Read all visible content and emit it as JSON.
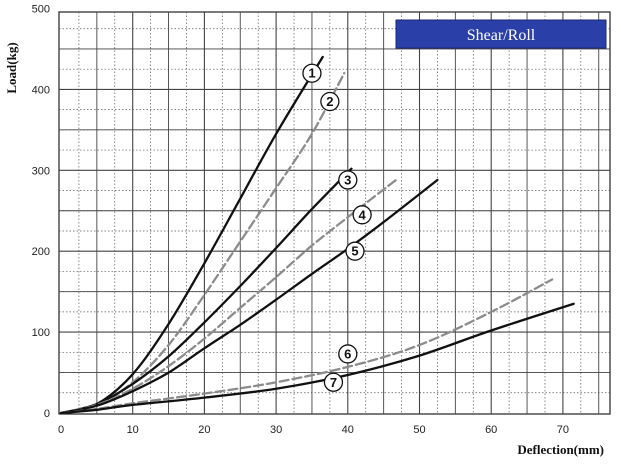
{
  "chart_data": {
    "type": "line",
    "xlabel": "Deflection(mm)",
    "ylabel": "Load(kg)",
    "xlim": [
      0,
      76
    ],
    "ylim": [
      0,
      540
    ],
    "x_ticks": [
      0,
      10,
      20,
      30,
      40,
      50,
      60,
      70
    ],
    "y_ticks": [
      0,
      100,
      200,
      300,
      400,
      500
    ],
    "grid": true,
    "legend": {
      "label": "Shear/Roll",
      "placement": "top-right",
      "color": "#2a3fa8"
    },
    "series": [
      {
        "name": "1",
        "color": "#111111",
        "dashed": false,
        "x": [
          0,
          5,
          10,
          15,
          20,
          25,
          30,
          36.5
        ],
        "y": [
          0,
          11,
          48,
          110,
          185,
          265,
          345,
          440
        ],
        "marker": {
          "x": 35,
          "y": 420
        }
      },
      {
        "name": "2",
        "color": "#8c8c8c",
        "dashed": true,
        "x": [
          0,
          5,
          10,
          15,
          20,
          25,
          30,
          35,
          39.5
        ],
        "y": [
          0,
          10,
          38,
          84,
          146,
          212,
          278,
          345,
          420
        ],
        "marker": {
          "x": 37.5,
          "y": 385
        }
      },
      {
        "name": "3",
        "color": "#111111",
        "dashed": false,
        "x": [
          0,
          5,
          10,
          15,
          20,
          25,
          30,
          35,
          40.5
        ],
        "y": [
          0,
          11,
          36,
          70,
          112,
          157,
          204,
          252,
          302
        ],
        "marker": {
          "x": 40,
          "y": 288
        }
      },
      {
        "name": "4",
        "color": "#8c8c8c",
        "dashed": true,
        "x": [
          0,
          5,
          10,
          15,
          20,
          25,
          30,
          35,
          40,
          47
        ],
        "y": [
          0,
          10,
          30,
          58,
          92,
          130,
          168,
          207,
          242,
          290
        ],
        "marker": {
          "x": 42,
          "y": 245
        }
      },
      {
        "name": "5",
        "color": "#111111",
        "dashed": false,
        "x": [
          0,
          5,
          10,
          15,
          20,
          25,
          30,
          35,
          40,
          45,
          52.5
        ],
        "y": [
          0,
          9,
          27,
          50,
          80,
          109,
          140,
          172,
          203,
          236,
          288
        ],
        "marker": {
          "x": 41,
          "y": 200
        }
      },
      {
        "name": "6",
        "color": "#8c8c8c",
        "dashed": true,
        "x": [
          0,
          5,
          10,
          20,
          30,
          40,
          50,
          60,
          68.5
        ],
        "y": [
          0,
          5,
          12,
          24,
          38,
          57,
          84,
          125,
          165
        ],
        "marker": {
          "x": 40,
          "y": 73
        }
      },
      {
        "name": "7",
        "color": "#111111",
        "dashed": false,
        "x": [
          0,
          5,
          10,
          20,
          30,
          40,
          50,
          60,
          71.5
        ],
        "y": [
          0,
          4,
          10,
          19,
          30,
          47,
          71,
          102,
          135
        ],
        "marker": {
          "x": 38,
          "y": 38
        }
      }
    ]
  }
}
